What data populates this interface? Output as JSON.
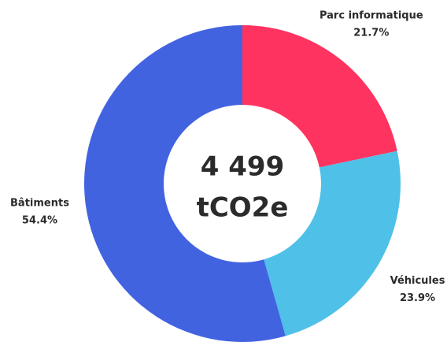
{
  "chart_data": {
    "type": "pie",
    "donut": true,
    "center_text": [
      "4 499",
      "tCO2e"
    ],
    "categories": [
      "Parc informatique",
      "Véhicules",
      "Bâtiments"
    ],
    "values": [
      21.7,
      23.9,
      54.4
    ],
    "value_labels": [
      "21.7%",
      "23.9%",
      "54.4%"
    ],
    "colors": [
      "#ff3360",
      "#4fc0e8",
      "#4263e0"
    ]
  }
}
